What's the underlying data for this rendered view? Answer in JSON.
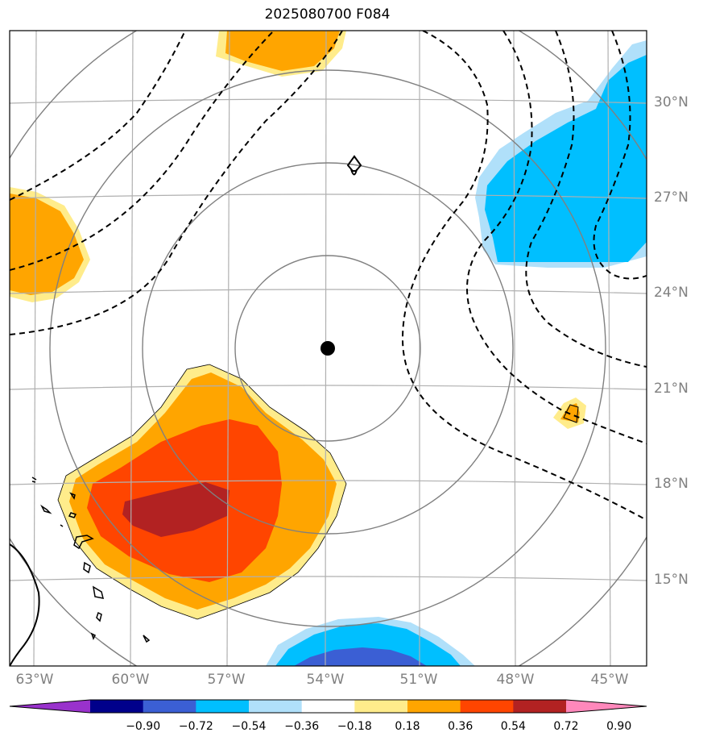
{
  "title": "2025080700 F084",
  "lat_labels": [
    {
      "text": "30°N"
    },
    {
      "text": "27°N"
    },
    {
      "text": "24°N"
    },
    {
      "text": "21°N"
    },
    {
      "text": "18°N"
    },
    {
      "text": "15°N"
    }
  ],
  "lon_labels": [
    {
      "text": "63°W"
    },
    {
      "text": "60°W"
    },
    {
      "text": "57°W"
    },
    {
      "text": "54°W"
    },
    {
      "text": "51°W"
    },
    {
      "text": "48°W"
    },
    {
      "text": "45°W"
    }
  ],
  "colorbar": {
    "colors": [
      "#9932cc",
      "#00008b",
      "#3b5fd4",
      "#00bfff",
      "#b0e0fa",
      "#ffffff",
      "#ffec8b",
      "#ffa500",
      "#ff4500",
      "#b22222",
      "#ff88bb"
    ],
    "tick_labels": [
      "−0.90",
      "−0.72",
      "−0.54",
      "−0.36",
      "−0.18",
      "0.18",
      "0.36",
      "0.54",
      "0.72",
      "0.90"
    ]
  },
  "legend_colors": {
    "shading_positive": [
      "#ffec8b",
      "#ffa500",
      "#ff4500",
      "#b22222"
    ],
    "shading_negative": [
      "#b0e0fa",
      "#00bfff",
      "#3b5fd4"
    ],
    "range_rings": "#808080",
    "gridlines": "#b0b0b0",
    "contours": "#000000"
  },
  "center_marker": {
    "lat": 22.2,
    "lon": -53.9
  }
}
